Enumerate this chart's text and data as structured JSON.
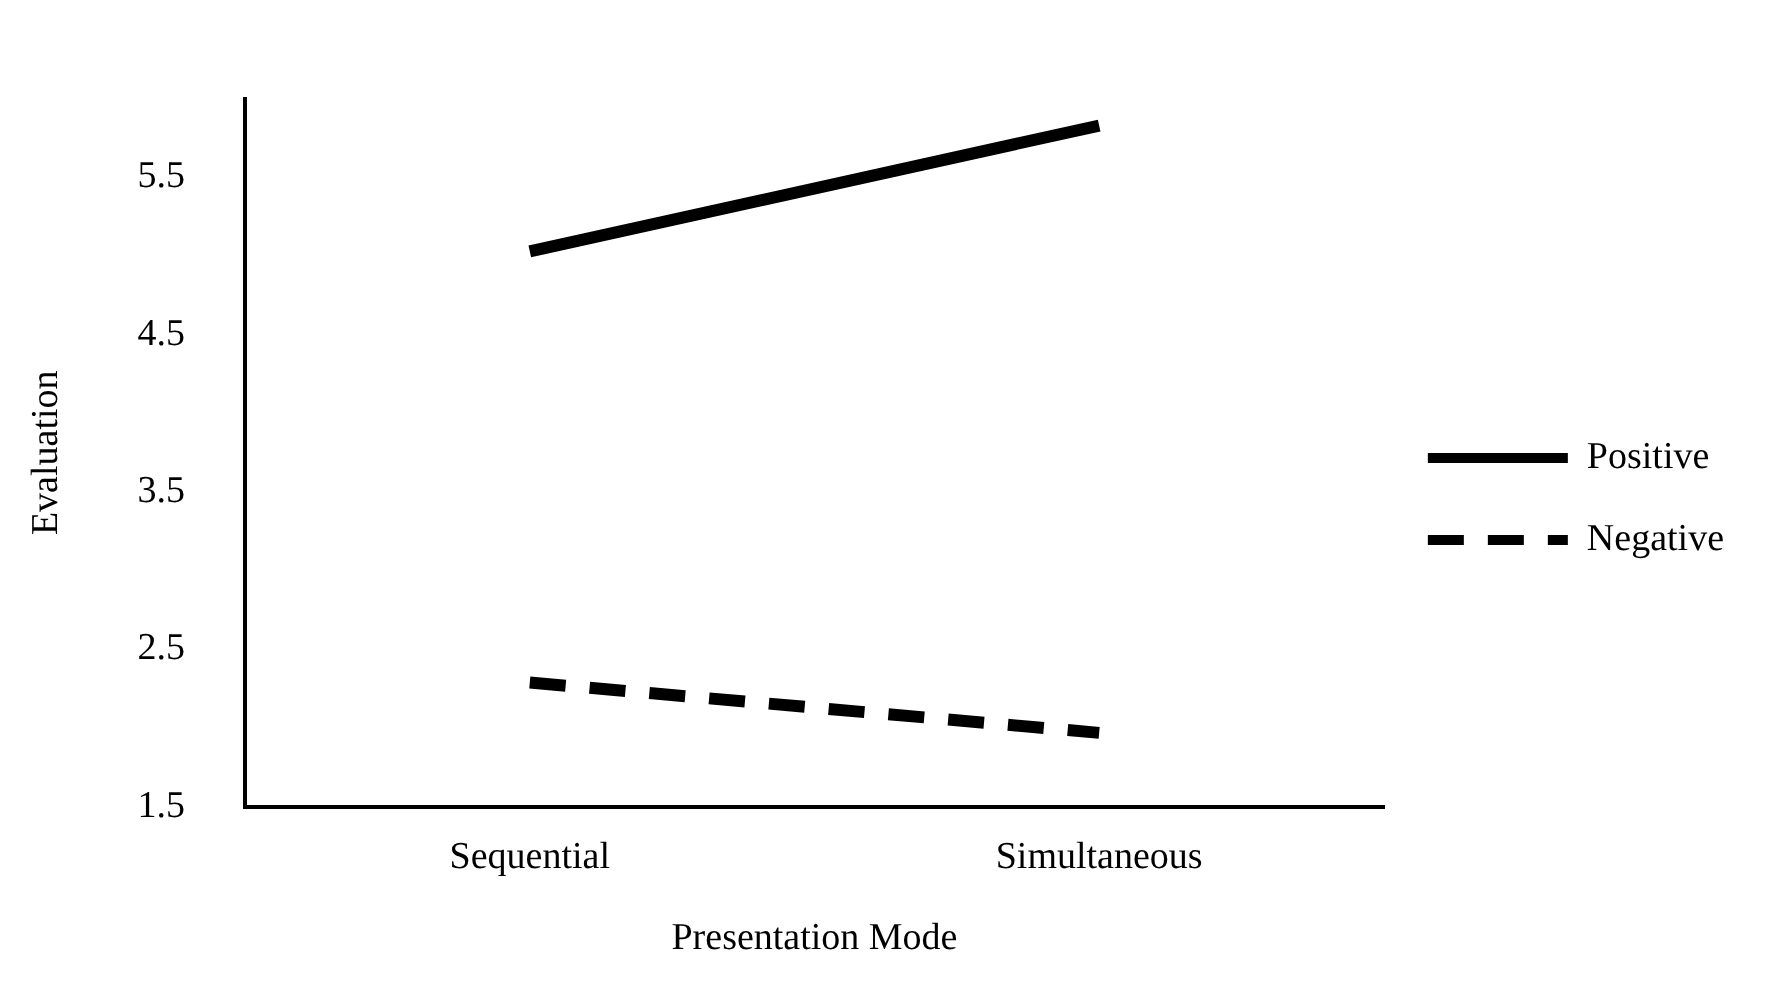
{
  "chart_data": {
    "type": "line",
    "xlabel": "Presentation Mode",
    "ylabel": "Evaluation",
    "categories": [
      "Sequential",
      "Simultaneous"
    ],
    "series": [
      {
        "name": "Positive",
        "color": "#000000",
        "values": [
          5.03,
          5.83
        ],
        "line_style": "solid"
      },
      {
        "name": "Negative",
        "color": "#000000",
        "values": [
          2.29,
          1.97
        ],
        "line_style": "dashed"
      }
    ],
    "ylim": [
      1.5,
      6.0
    ],
    "yticks": [
      1.5,
      2.5,
      3.5,
      4.5,
      5.5
    ],
    "grid": false,
    "legend": "right",
    "marker": "none"
  }
}
